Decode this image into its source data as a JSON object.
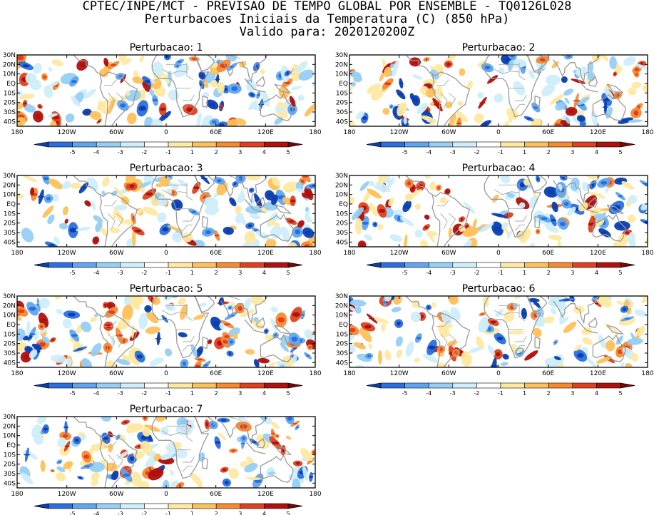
{
  "header": {
    "line1": "CPTEC/INPE/MCT - PREVISAO DE TEMPO GLOBAL POR ENSEMBLE - TQ0126L028",
    "line2": "Perturbacoes Iniciais da Temperatura (C) (850 hPa)",
    "line3": "Valido para: 2020120200Z"
  },
  "panels": [
    {
      "title": "Perturbacao: 1"
    },
    {
      "title": "Perturbacao: 2"
    },
    {
      "title": "Perturbacao: 3"
    },
    {
      "title": "Perturbacao: 4"
    },
    {
      "title": "Perturbacao: 5"
    },
    {
      "title": "Perturbacao: 6"
    },
    {
      "title": "Perturbacao: 7"
    }
  ],
  "map": {
    "lat_labels": [
      "30N",
      "20N",
      "10N",
      "EQ",
      "10S",
      "20S",
      "30S",
      "40S"
    ],
    "lon_labels": [
      "180",
      "120W",
      "60W",
      "0",
      "60E",
      "120E",
      "180"
    ],
    "lat_range": [
      -45,
      30
    ],
    "lon_range": [
      -180,
      180
    ]
  },
  "colorbar": {
    "labels": [
      "-5",
      "-4",
      "-3",
      "-2",
      "-1",
      "1",
      "2",
      "3",
      "4",
      "5"
    ],
    "colors": [
      "#0b3fb0",
      "#2a6fe0",
      "#5ea6f0",
      "#96cff5",
      "#cdeefa",
      "#ffffff",
      "#ffe9a0",
      "#ffc05a",
      "#f7892f",
      "#e0401c",
      "#b0110d",
      "#7a0505"
    ]
  }
}
